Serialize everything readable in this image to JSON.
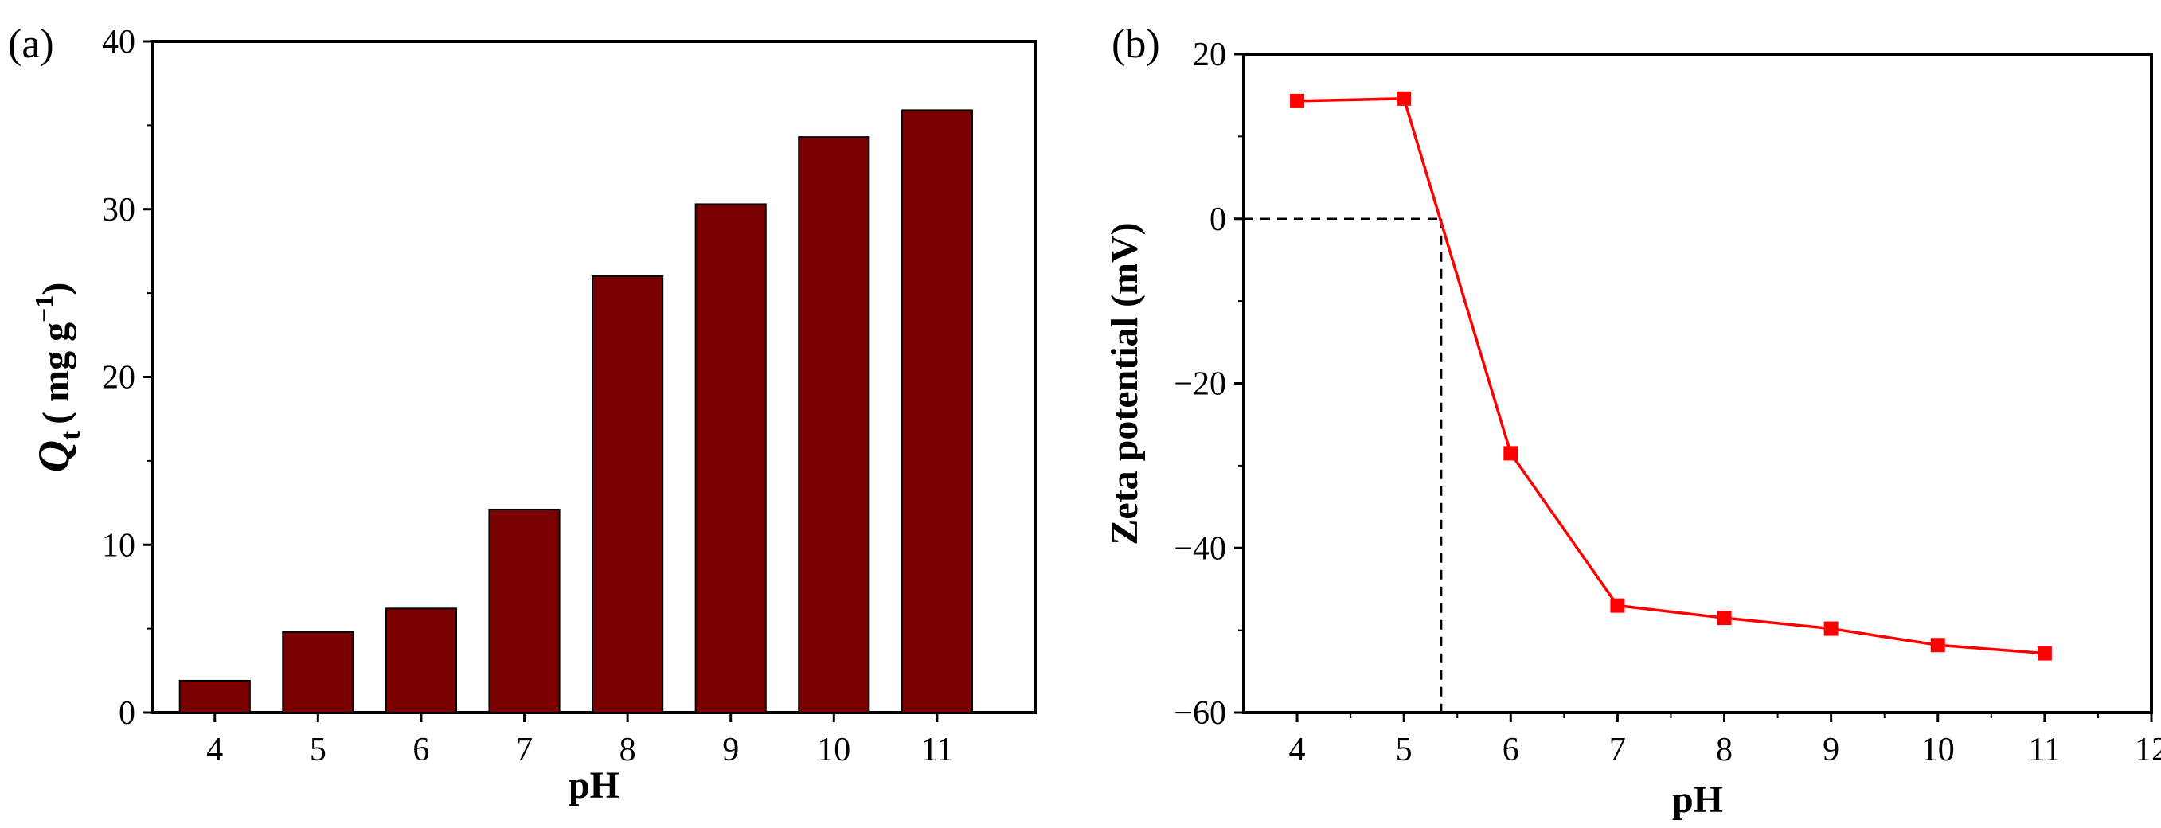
{
  "chart_data": [
    {
      "panel": "(a)",
      "type": "bar",
      "categories": [
        "4",
        "5",
        "6",
        "7",
        "8",
        "9",
        "10",
        "11"
      ],
      "values": [
        1.9,
        4.8,
        6.2,
        12.1,
        26.0,
        30.3,
        34.3,
        35.9
      ],
      "bar_color": "#7B0000",
      "xlabel": "pH",
      "ylabel_main": "Q",
      "ylabel_sub": "t",
      "ylabel_unit": "( mg g",
      "ylabel_sup": "−1",
      "ylabel_close": ")",
      "ylim": [
        0,
        40
      ],
      "yticks": [
        "0",
        "10",
        "20",
        "30",
        "40"
      ]
    },
    {
      "panel": "(b)",
      "type": "line",
      "x": [
        4,
        5,
        6,
        7,
        8,
        9,
        10,
        11
      ],
      "y": [
        14.3,
        14.6,
        -28.5,
        -47.0,
        -48.5,
        -49.8,
        -51.8,
        -52.8
      ],
      "line_color": "#FF0000",
      "xlabel": "pH",
      "ylabel": "Zeta potential (mV)",
      "xlim": [
        3.5,
        12
      ],
      "ylim": [
        -60,
        20
      ],
      "xticks": [
        "4",
        "5",
        "6",
        "7",
        "8",
        "9",
        "10",
        "11",
        "12"
      ],
      "yticks": [
        "20",
        "0",
        "−20",
        "−40",
        "−60"
      ],
      "isoelectric_point": 5.35
    }
  ]
}
